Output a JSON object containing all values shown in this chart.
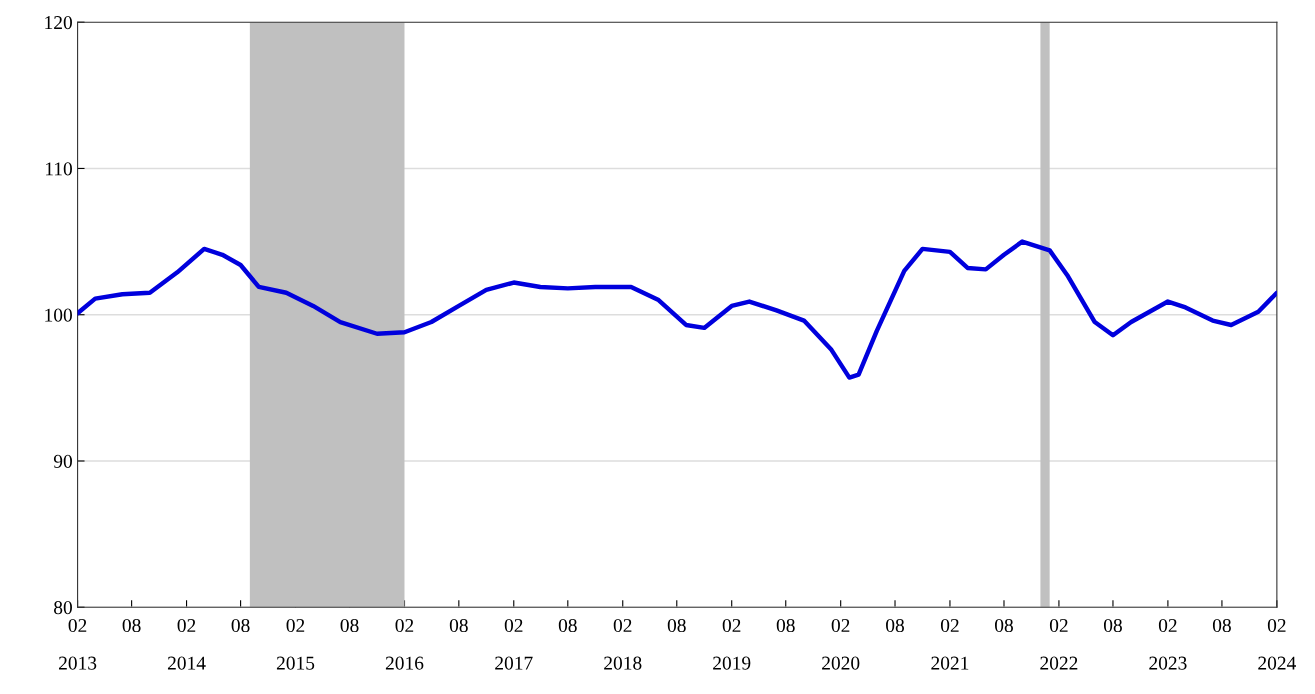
{
  "chart_data": {
    "type": "line",
    "x": [
      "2013-02",
      "2013-04",
      "2013-07",
      "2013-10",
      "2014-01",
      "2014-04",
      "2014-06",
      "2014-08",
      "2014-10",
      "2015-01",
      "2015-04",
      "2015-07",
      "2015-11",
      "2016-02",
      "2016-05",
      "2016-08",
      "2016-11",
      "2017-02",
      "2017-05",
      "2017-08",
      "2017-11",
      "2018-03",
      "2018-06",
      "2018-09",
      "2018-11",
      "2019-02",
      "2019-04",
      "2019-07",
      "2019-10",
      "2020-01",
      "2020-03",
      "2020-04",
      "2020-06",
      "2020-09",
      "2020-11",
      "2021-02",
      "2021-04",
      "2021-06",
      "2021-08",
      "2021-10",
      "2022-01",
      "2022-03",
      "2022-06",
      "2022-08",
      "2022-10",
      "2023-02",
      "2023-04",
      "2023-07",
      "2023-09",
      "2023-12",
      "2024-02"
    ],
    "series": [
      {
        "color": "#0000dd",
        "values": [
          100.1,
          101.1,
          101.4,
          101.5,
          102.9,
          104.5,
          104.1,
          103.4,
          101.9,
          101.5,
          100.6,
          99.5,
          98.7,
          98.8,
          99.5,
          100.6,
          101.7,
          102.2,
          101.9,
          101.8,
          101.9,
          101.9,
          101.0,
          99.3,
          99.1,
          100.6,
          100.9,
          100.3,
          99.6,
          97.6,
          95.7,
          95.9,
          98.9,
          103.0,
          104.5,
          104.3,
          103.2,
          103.1,
          104.1,
          105.0,
          104.4,
          102.7,
          99.5,
          98.6,
          99.5,
          100.9,
          100.5,
          99.6,
          99.3,
          100.2,
          101.5
        ]
      }
    ],
    "xlim": [
      "2013-02",
      "2024-02"
    ],
    "xticks": [
      {
        "value": "2013-02",
        "label": "02"
      },
      {
        "value": "2013-08",
        "label": "08"
      },
      {
        "value": "2014-02",
        "label": "02"
      },
      {
        "value": "2014-08",
        "label": "08"
      },
      {
        "value": "2015-02",
        "label": "02"
      },
      {
        "value": "2015-08",
        "label": "08"
      },
      {
        "value": "2016-02",
        "label": "02"
      },
      {
        "value": "2016-08",
        "label": "08"
      },
      {
        "value": "2017-02",
        "label": "02"
      },
      {
        "value": "2017-08",
        "label": "08"
      },
      {
        "value": "2018-02",
        "label": "02"
      },
      {
        "value": "2018-08",
        "label": "08"
      },
      {
        "value": "2019-02",
        "label": "02"
      },
      {
        "value": "2019-08",
        "label": "08"
      },
      {
        "value": "2020-02",
        "label": "02"
      },
      {
        "value": "2020-08",
        "label": "08"
      },
      {
        "value": "2021-02",
        "label": "02"
      },
      {
        "value": "2021-08",
        "label": "08"
      },
      {
        "value": "2022-02",
        "label": "02"
      },
      {
        "value": "2022-08",
        "label": "08"
      },
      {
        "value": "2023-02",
        "label": "02"
      },
      {
        "value": "2023-08",
        "label": "08"
      },
      {
        "value": "2024-02",
        "label": "02"
      }
    ],
    "x2lim": [
      "2013-02",
      "2024-02"
    ],
    "x2ticks": [
      {
        "value": "2013-02",
        "label": "2013"
      },
      {
        "value": "2014-02",
        "label": "2014"
      },
      {
        "value": "2015-02",
        "label": "2015"
      },
      {
        "value": "2016-02",
        "label": "2016"
      },
      {
        "value": "2017-02",
        "label": "2017"
      },
      {
        "value": "2018-02",
        "label": "2018"
      },
      {
        "value": "2019-02",
        "label": "2019"
      },
      {
        "value": "2020-02",
        "label": "2020"
      },
      {
        "value": "2021-02",
        "label": "2021"
      },
      {
        "value": "2022-02",
        "label": "2022"
      },
      {
        "value": "2023-02",
        "label": "2023"
      },
      {
        "value": "2024-02",
        "label": "2024"
      }
    ],
    "ylim": [
      80,
      120
    ],
    "yticks": [
      80,
      90,
      100,
      110,
      120
    ],
    "grid": "y",
    "marker": "none",
    "line_style": "solid",
    "bands": [
      {
        "axis": "x",
        "from": "2014-09",
        "to": "2016-02",
        "color": "#c0c0c0"
      },
      {
        "axis": "x",
        "from": "2021-12",
        "to": "2022-01",
        "color": "#c0c0c0"
      }
    ]
  }
}
